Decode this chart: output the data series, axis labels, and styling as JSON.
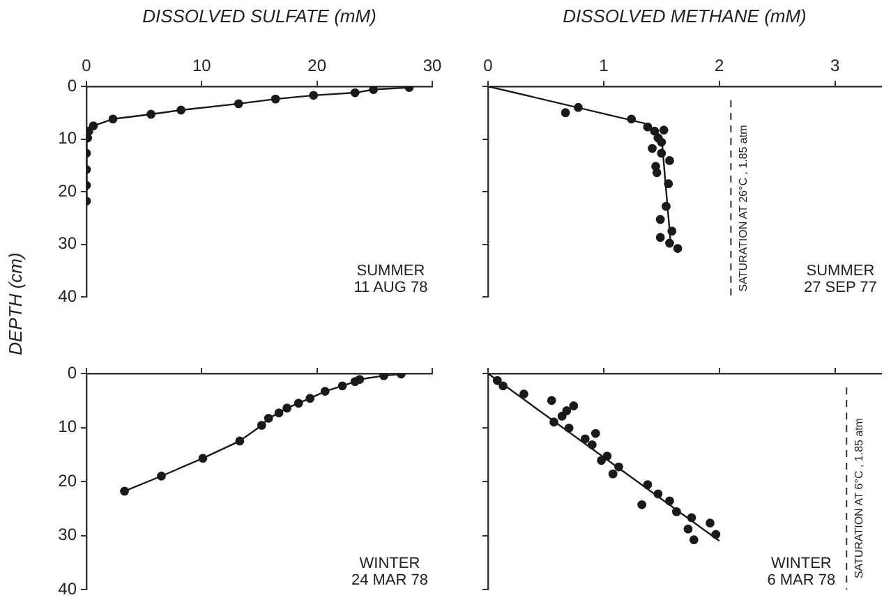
{
  "chart_data": [
    {
      "type": "line",
      "title": "DISSOLVED SULFATE (mM)",
      "ylabel": "DEPTH (cm)",
      "xlim": [
        0,
        30
      ],
      "xticks": [
        0,
        10,
        20,
        30
      ],
      "ylim": [
        40,
        0
      ],
      "yticks": [
        0,
        10,
        20,
        30,
        40
      ],
      "marker": "circle",
      "annotations": [
        "SUMMER",
        "11 AUG 78"
      ],
      "series": [
        {
          "color": "#1a1a1a",
          "x": [
            28.0,
            24.9,
            23.3,
            19.7,
            16.4,
            13.2,
            8.2,
            5.6,
            2.3,
            0.6,
            0.2,
            0,
            0.1,
            0,
            0,
            0,
            0
          ],
          "values": [
            0.2,
            0.6,
            1.2,
            1.7,
            2.4,
            3.3,
            4.5,
            5.3,
            6.2,
            7.5,
            8.5,
            9.2,
            9.8,
            12.7,
            15.8,
            18.8,
            21.8
          ]
        }
      ]
    },
    {
      "type": "scatter",
      "title": "DISSOLVED METHANE (mM)",
      "xlim": [
        0,
        3.4
      ],
      "xticks": [
        0,
        1,
        2,
        3
      ],
      "ylim": [
        40,
        0
      ],
      "yticks": [
        {
          "value": 0,
          "label": null
        },
        {
          "value": 10,
          "label": null
        },
        {
          "value": 20,
          "label": null
        },
        {
          "value": 30,
          "label": null
        },
        {
          "value": 40,
          "label": null
        }
      ],
      "tick_labels": "x",
      "annotations": [
        "SUMMER",
        "27 SEP 77"
      ],
      "ref_lines": [
        {
          "axis": "x",
          "value": 2.1,
          "label": "SATURATION AT 26°C , 1.85 atm",
          "color": "#333333",
          "line_style": "dashed"
        }
      ],
      "series": [
        {
          "marker": "circle",
          "color": "#1a1a1a",
          "x": [
            0.67,
            0.78,
            1.24,
            1.38,
            1.44,
            1.52,
            1.47,
            1.5,
            1.42,
            1.5,
            1.57,
            1.45,
            1.46,
            1.56,
            1.54,
            1.49,
            1.59,
            1.49,
            1.57,
            1.64
          ],
          "values": [
            5.0,
            4.0,
            6.2,
            7.7,
            8.5,
            8.3,
            9.8,
            10.6,
            11.8,
            12.7,
            14.1,
            15.2,
            16.4,
            18.5,
            22.8,
            25.3,
            27.5,
            28.7,
            29.8,
            30.8
          ]
        },
        {
          "type": "line",
          "marker": "none",
          "color": "#1a1a1a",
          "x": [
            0,
            1.35,
            1.5,
            1.58
          ],
          "values": [
            0,
            7,
            9.5,
            30
          ]
        }
      ]
    },
    {
      "type": "line",
      "xlim": [
        0,
        30
      ],
      "xticks": [
        {
          "value": 0,
          "label": null
        },
        {
          "value": 10,
          "label": null
        },
        {
          "value": 20,
          "label": null
        },
        {
          "value": 30,
          "label": null
        }
      ],
      "ylim": [
        40,
        0
      ],
      "yticks": [
        0,
        10,
        20,
        30,
        40
      ],
      "tick_labels": "y",
      "marker": "circle",
      "annotations": [
        "WINTER",
        "24 MAR 78"
      ],
      "series": [
        {
          "color": "#1a1a1a",
          "x": [
            3.3,
            6.5,
            10.1,
            13.3,
            15.2,
            15.8,
            16.7,
            17.4,
            18.4,
            19.4,
            20.7,
            22.2,
            23.3,
            23.7,
            25.8,
            27.3
          ],
          "values": [
            21.8,
            19.0,
            15.7,
            12.5,
            9.6,
            8.3,
            7.3,
            6.4,
            5.5,
            4.6,
            3.3,
            2.3,
            1.5,
            1.1,
            0.4,
            0.1
          ]
        }
      ]
    },
    {
      "type": "scatter",
      "xlim": [
        0,
        3.4
      ],
      "xticks": [
        {
          "value": 0,
          "label": null
        },
        {
          "value": 1,
          "label": null
        },
        {
          "value": 2,
          "label": null
        },
        {
          "value": 3,
          "label": null
        }
      ],
      "ylim": [
        40,
        0
      ],
      "yticks": [
        {
          "value": 0,
          "label": null
        },
        {
          "value": 10,
          "label": null
        },
        {
          "value": 20,
          "label": null
        },
        {
          "value": 30,
          "label": null
        },
        {
          "value": 40,
          "label": null
        }
      ],
      "tick_labels": false,
      "annotations": [
        "WINTER",
        "6 MAR 78"
      ],
      "ref_lines": [
        {
          "axis": "x",
          "value": 3.1,
          "label": "SATURATION AT 6°C , 1.85 atm",
          "color": "#333333",
          "line_style": "dashed"
        }
      ],
      "series": [
        {
          "marker": "circle",
          "color": "#1a1a1a",
          "x": [
            0.08,
            0.13,
            0.31,
            0.55,
            0.74,
            0.68,
            0.64,
            0.57,
            0.7,
            0.84,
            0.93,
            0.9,
            1.03,
            0.98,
            1.13,
            1.08,
            1.38,
            1.47,
            1.33,
            1.57,
            1.63,
            1.76,
            1.92,
            1.73,
            1.97,
            1.78
          ],
          "values": [
            1.3,
            2.3,
            3.8,
            5.0,
            6.0,
            6.9,
            7.9,
            9.0,
            10.1,
            12.1,
            11.1,
            13.2,
            15.3,
            16.1,
            17.3,
            18.6,
            20.6,
            22.3,
            24.3,
            23.6,
            25.6,
            26.7,
            27.7,
            28.8,
            29.8,
            30.8
          ]
        },
        {
          "type": "line",
          "marker": "none",
          "color": "#1a1a1a",
          "x": [
            0,
            2.0
          ],
          "values": [
            0,
            31
          ]
        }
      ]
    }
  ]
}
